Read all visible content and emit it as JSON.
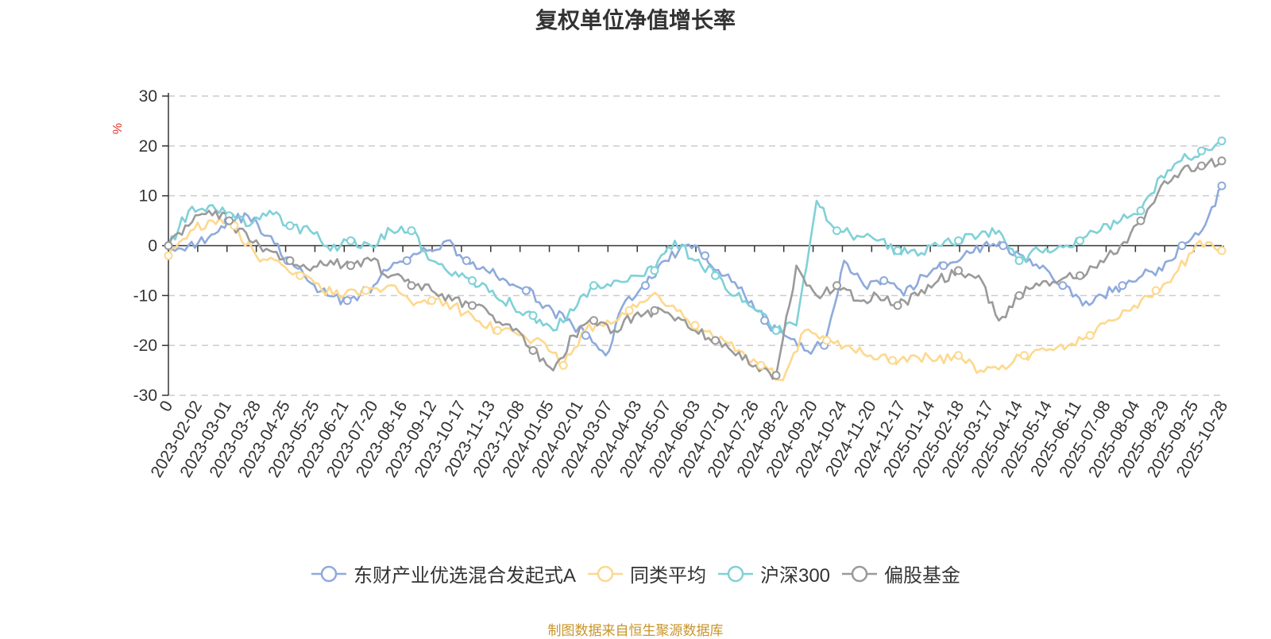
{
  "chart_data": {
    "type": "line",
    "title": "复权单位净值增长率",
    "ylabel": "%",
    "ylim": [
      -30,
      30
    ],
    "yticks": [
      30,
      20,
      10,
      0,
      -10,
      -20,
      -30
    ],
    "x_start_label": "0",
    "x_labels": [
      "2023-02-02",
      "2023-03-01",
      "2023-03-28",
      "2023-04-25",
      "2023-05-25",
      "2023-06-21",
      "2023-07-20",
      "2023-08-16",
      "2023-09-12",
      "2023-10-17",
      "2023-11-13",
      "2023-12-08",
      "2024-01-05",
      "2024-02-01",
      "2024-03-07",
      "2024-04-03",
      "2024-05-07",
      "2024-06-03",
      "2024-07-01",
      "2024-07-26",
      "2024-08-22",
      "2024-09-20",
      "2024-10-24",
      "2024-11-20",
      "2024-12-17",
      "2025-01-14",
      "2025-02-18",
      "2025-03-17",
      "2025-04-14",
      "2025-05-14",
      "2025-06-11",
      "2025-07-08",
      "2025-08-04",
      "2025-08-29",
      "2025-09-25",
      "2025-10-28"
    ],
    "series": [
      {
        "name": "东财产业优选混合发起式A",
        "color": "#8eaadc",
        "values": [
          0,
          0,
          1.5,
          5,
          6,
          2,
          -3,
          -7,
          -10,
          -11,
          -9,
          -5,
          -3,
          -1,
          1,
          -3,
          -5,
          -7,
          -9,
          -12,
          -15,
          -18,
          -22,
          -11,
          -8,
          -3,
          0,
          -2,
          -6,
          -10,
          -15,
          -18,
          -21,
          -20,
          -3,
          -8,
          -7,
          -10,
          -6,
          -4,
          -2,
          0,
          0,
          -2,
          -4,
          -8,
          -12,
          -10,
          -8,
          -6,
          -5,
          0,
          3,
          12
        ]
      },
      {
        "name": "同类平均",
        "color": "#fdd88e",
        "values": [
          -2,
          3,
          5,
          4,
          -2,
          -3,
          -6,
          -9,
          -10,
          -9,
          -8,
          -11,
          -11,
          -12,
          -15,
          -17,
          -18,
          -19,
          -24,
          -17,
          -15,
          -13,
          -10,
          -12,
          -16,
          -19,
          -21,
          -24,
          -27,
          -17,
          -19,
          -20,
          -22,
          -23,
          -22,
          -23,
          -22,
          -25,
          -24,
          -22,
          -21,
          -20,
          -18,
          -15,
          -12,
          -9,
          -5,
          1,
          -1
        ]
      },
      {
        "name": "沪深300",
        "color": "#7fd1d7",
        "values": [
          0,
          7,
          8,
          6,
          4,
          7,
          4,
          3,
          -1,
          1,
          0,
          3,
          3,
          -3,
          -6,
          -7,
          -9,
          -12,
          -14,
          -17,
          -13,
          -8,
          -7,
          -6,
          -5,
          1,
          -3,
          -6,
          -10,
          -13,
          -17,
          -16,
          9,
          3,
          2,
          1,
          -1,
          -2,
          0,
          1,
          2,
          3,
          -3,
          -1,
          0,
          1,
          3,
          5,
          7,
          14,
          17,
          19,
          21
        ]
      },
      {
        "name": "偏股基金",
        "color": "#9a9a9a",
        "values": [
          0,
          4,
          7,
          5,
          1,
          -1,
          -3,
          -5,
          -3,
          -4,
          -3,
          -6,
          -8,
          -9,
          -11,
          -12,
          -14,
          -17,
          -21,
          -25,
          -18,
          -15,
          -17,
          -14,
          -13,
          -15,
          -17,
          -19,
          -22,
          -24,
          -26,
          -4,
          -10,
          -8,
          -11,
          -10,
          -12,
          -10,
          -7,
          -5,
          -6,
          -15,
          -10,
          -8,
          -7,
          -6,
          -3,
          0,
          5,
          12,
          15,
          16,
          17
        ]
      }
    ]
  },
  "source_note": "制图数据来自恒生聚源数据库"
}
